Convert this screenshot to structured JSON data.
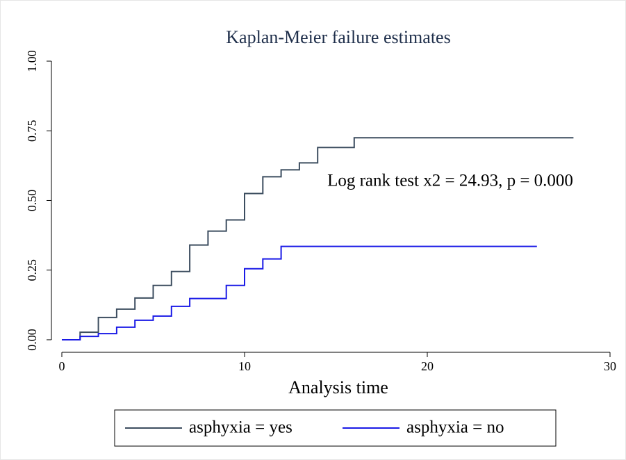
{
  "chart_data": {
    "type": "step",
    "title": "Kaplan-Meier failure estimates",
    "xlabel": "Analysis time",
    "annotation": "Log rank test x2 = 24.93, p = 0.000",
    "xlim": [
      -0.57,
      30
    ],
    "xticks": [
      0,
      10,
      20,
      30
    ],
    "ylim": [
      -0.045,
      1
    ],
    "yticks": [
      {
        "value": 0,
        "label": "0.00"
      },
      {
        "value": 0.25,
        "label": "0.25"
      },
      {
        "value": 0.5,
        "label": "0.50"
      },
      {
        "value": 0.75,
        "label": "0.75"
      },
      {
        "value": 1,
        "label": "1.00"
      }
    ],
    "legend": "bottom",
    "series": [
      {
        "name": "asphyxia = yes",
        "color": "#3c4d5f",
        "x": [
          0,
          1,
          2,
          3,
          4,
          5,
          6,
          7,
          8,
          9,
          10,
          11,
          12,
          13,
          14,
          16,
          28
        ],
        "values": [
          0,
          0.027,
          0.08,
          0.11,
          0.15,
          0.195,
          0.245,
          0.34,
          0.39,
          0.43,
          0.525,
          0.585,
          0.61,
          0.635,
          0.69,
          0.725,
          0.725
        ]
      },
      {
        "name": "asphyxia = no",
        "color": "#1a1ae6",
        "x": [
          0,
          1,
          2,
          3,
          4,
          5,
          6,
          7,
          9,
          10,
          11,
          12,
          26
        ],
        "values": [
          0,
          0.012,
          0.022,
          0.045,
          0.07,
          0.085,
          0.12,
          0.148,
          0.195,
          0.255,
          0.29,
          0.335,
          0.335
        ]
      }
    ]
  }
}
